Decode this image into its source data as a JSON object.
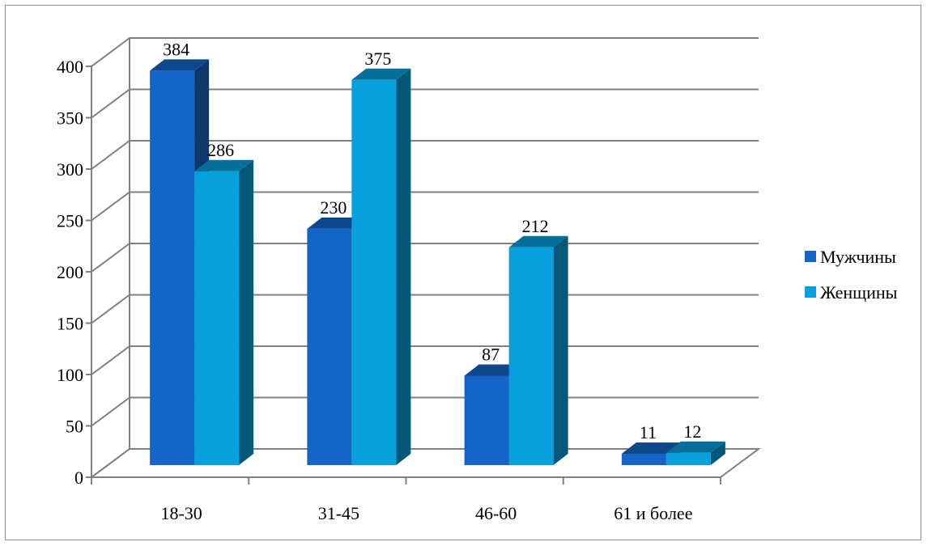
{
  "chart_data": {
    "type": "bar",
    "style": "3d-clustered",
    "categories": [
      "18-30",
      "31-45",
      "46-60",
      "61 и более"
    ],
    "series": [
      {
        "name": "Мужчины",
        "values": [
          384,
          230,
          87,
          11
        ],
        "color": "#1565C8"
      },
      {
        "name": "Женщины",
        "values": [
          286,
          375,
          212,
          12
        ],
        "color": "#06A0DC"
      }
    ],
    "ylim": [
      0,
      400
    ],
    "yticks": [
      0,
      50,
      100,
      150,
      200,
      250,
      300,
      350,
      400
    ],
    "grid": true,
    "data_labels": true,
    "legend_position": "right"
  }
}
